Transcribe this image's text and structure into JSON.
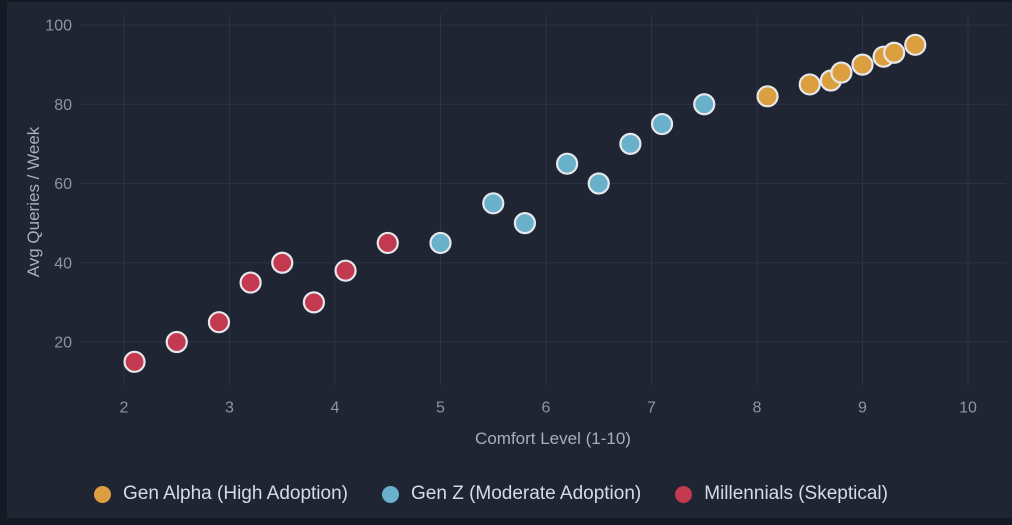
{
  "chart_data": {
    "type": "scatter",
    "xlabel": "Comfort Level (1-10)",
    "ylabel": "Avg Queries / Week",
    "xticks": [
      2,
      3,
      4,
      5,
      6,
      7,
      8,
      9,
      10
    ],
    "yticks": [
      20,
      40,
      60,
      80,
      100
    ],
    "xlim": [
      2,
      10
    ],
    "ylim": [
      20,
      100
    ],
    "grid": true,
    "legend_position": "bottom",
    "series": [
      {
        "name": "Gen Alpha (High Adoption)",
        "color": "#DB9F3F",
        "points": [
          [
            8.1,
            82
          ],
          [
            8.5,
            85
          ],
          [
            8.7,
            86
          ],
          [
            8.8,
            88
          ],
          [
            9.0,
            90
          ],
          [
            9.2,
            92
          ],
          [
            9.3,
            93
          ],
          [
            9.5,
            95
          ]
        ]
      },
      {
        "name": "Gen Z (Moderate Adoption)",
        "color": "#69B1CB",
        "points": [
          [
            5.0,
            45
          ],
          [
            5.5,
            55
          ],
          [
            5.8,
            50
          ],
          [
            6.2,
            65
          ],
          [
            6.5,
            60
          ],
          [
            6.8,
            70
          ],
          [
            7.1,
            75
          ],
          [
            7.5,
            80
          ]
        ]
      },
      {
        "name": "Millennials (Skeptical)",
        "color": "#C23950",
        "points": [
          [
            2.1,
            15
          ],
          [
            2.5,
            20
          ],
          [
            2.9,
            25
          ],
          [
            3.2,
            35
          ],
          [
            3.5,
            40
          ],
          [
            3.8,
            30
          ],
          [
            4.1,
            38
          ],
          [
            4.5,
            45
          ]
        ]
      }
    ]
  },
  "colors": {
    "page_edge": "#141924",
    "panel_background": "#1F2533",
    "gridline": "#2C3344",
    "tick_label": "#8C95A8",
    "axis_title": "#A6AEBF",
    "legend_text": "#D6DBE5",
    "marker_border": "#E7E8EB"
  }
}
